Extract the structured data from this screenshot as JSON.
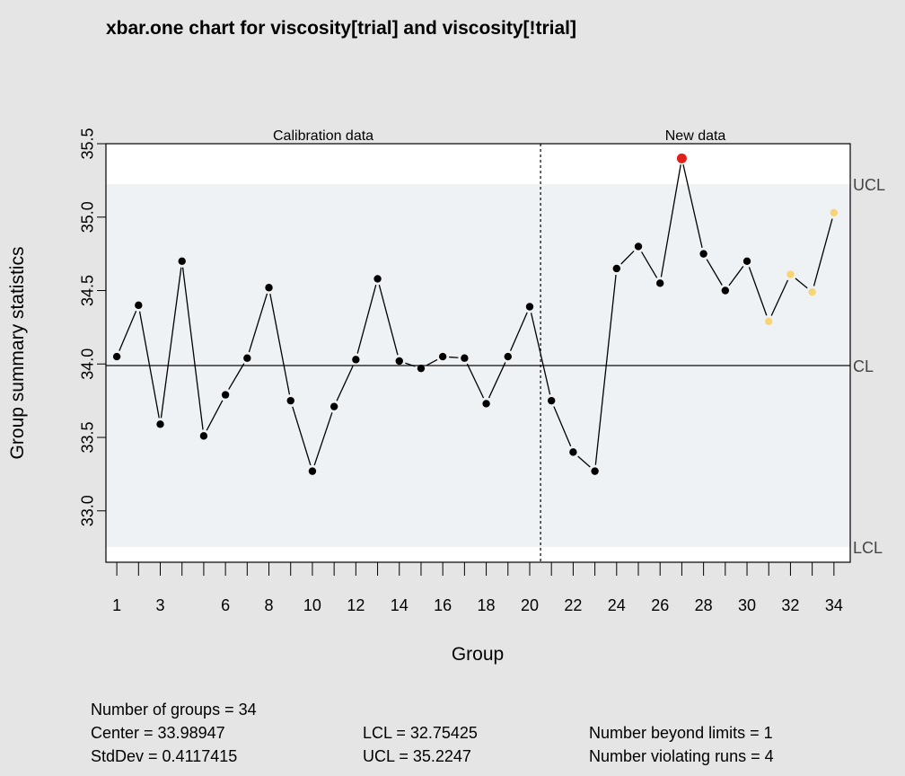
{
  "chart_data": {
    "type": "line",
    "title": "xbar.one chart for viscosity[trial] and viscosity[!trial]",
    "xlabel": "Group",
    "ylabel": "Group summary statistics",
    "x": [
      1,
      2,
      3,
      4,
      5,
      6,
      7,
      8,
      9,
      10,
      11,
      12,
      13,
      14,
      15,
      16,
      17,
      18,
      19,
      20,
      21,
      22,
      23,
      24,
      25,
      26,
      27,
      28,
      29,
      30,
      31,
      32,
      33,
      34
    ],
    "values": [
      34.05,
      34.4,
      33.59,
      34.7,
      33.51,
      33.79,
      34.04,
      34.52,
      33.75,
      33.27,
      33.71,
      34.03,
      34.58,
      34.02,
      33.97,
      34.05,
      34.04,
      33.73,
      34.05,
      34.39,
      33.75,
      33.4,
      33.27,
      34.65,
      34.8,
      34.55,
      35.4,
      34.75,
      34.5,
      34.7,
      34.29,
      34.61,
      34.49,
      35.03
    ],
    "point_status": [
      "normal",
      "normal",
      "normal",
      "normal",
      "normal",
      "normal",
      "normal",
      "normal",
      "normal",
      "normal",
      "normal",
      "normal",
      "normal",
      "normal",
      "normal",
      "normal",
      "normal",
      "normal",
      "normal",
      "normal",
      "normal",
      "normal",
      "normal",
      "normal",
      "normal",
      "normal",
      "beyond",
      "normal",
      "normal",
      "normal",
      "run",
      "run",
      "run",
      "run"
    ],
    "status_colors": {
      "normal": "#000000",
      "beyond": "#e0201b",
      "run": "#f8d478"
    },
    "xlim": [
      0.5,
      34.75
    ],
    "ylim": [
      32.65,
      35.5
    ],
    "yticks": [
      33.0,
      33.5,
      34.0,
      34.5,
      35.0,
      35.5
    ],
    "ytick_labels": [
      "33.0",
      "33.5",
      "34.0",
      "34.5",
      "35.0",
      "35.5"
    ],
    "xtick_labels": [
      "1",
      "3",
      "6",
      "8",
      "10",
      "12",
      "14",
      "16",
      "18",
      "20",
      "22",
      "24",
      "26",
      "28",
      "30",
      "32",
      "34"
    ],
    "limits": {
      "ucl": 35.2247,
      "cl": 33.98947,
      "lcl": 32.75425
    },
    "limit_labels": {
      "ucl": "UCL",
      "cl": "CL",
      "lcl": "LCL"
    },
    "calibration_groups": 20,
    "sections": {
      "calibration": "Calibration data",
      "new": "New data"
    },
    "colors": {
      "background": "#e5e5e5",
      "plot_area": "#ffffff",
      "limit_band": "#eff2f5",
      "frame": "#000000",
      "center_line": "#333333"
    }
  },
  "stats": {
    "number_of_groups": "Number of groups = 34",
    "center": "Center = 33.98947",
    "stddev": "StdDev = 0.4117415",
    "lcl": "LCL = 32.75425",
    "ucl": "UCL = 35.2247",
    "beyond": "Number beyond limits = 1",
    "violating": "Number violating runs = 4"
  }
}
